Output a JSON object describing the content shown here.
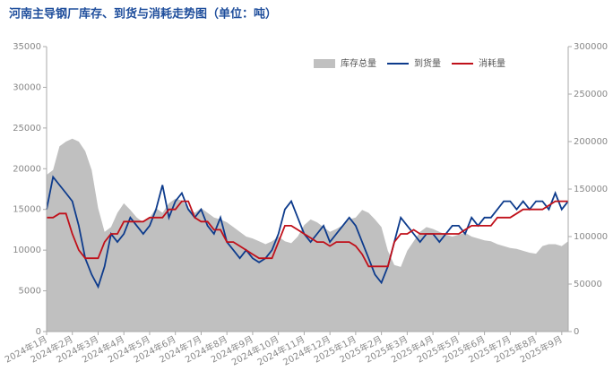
{
  "chart_data": {
    "type": "line",
    "title": "河南主导钢厂库存、到货与消耗走势图（单位：吨）",
    "categories": [
      "2024年1月",
      null,
      null,
      null,
      "2024年2月",
      null,
      null,
      null,
      "2024年3月",
      null,
      null,
      null,
      "2024年4月",
      null,
      null,
      null,
      "2024年5月",
      null,
      null,
      null,
      "2024年6月",
      null,
      null,
      null,
      "2024年7月",
      null,
      null,
      null,
      "2024年8月",
      null,
      null,
      null,
      "2024年9月",
      null,
      null,
      null,
      "2024年10月",
      null,
      null,
      null,
      "2024年11月",
      null,
      null,
      null,
      "2024年12月",
      null,
      null,
      null,
      "2025年1月",
      null,
      null,
      null,
      "2025年2月",
      null,
      null,
      null,
      "2025年3月",
      null,
      null,
      null,
      "2025年4月",
      null,
      null,
      null,
      "2025年5月",
      null,
      null,
      null,
      "2025年6月",
      null,
      null,
      null,
      "2025年7月",
      null,
      null,
      null,
      "2025年8月",
      null,
      null,
      null,
      "2025年9月",
      null
    ],
    "series": [
      {
        "name": "库存总量",
        "kind": "area",
        "axis": "y2",
        "color": "#c0c0c0",
        "values": [
          165000,
          170000,
          195000,
          200000,
          203000,
          200000,
          190000,
          170000,
          130000,
          105000,
          110000,
          125000,
          135000,
          128000,
          120000,
          115000,
          120000,
          130000,
          125000,
          135000,
          140000,
          138000,
          130000,
          125000,
          130000,
          125000,
          120000,
          118000,
          115000,
          110000,
          105000,
          100000,
          98000,
          95000,
          92000,
          95000,
          100000,
          95000,
          93000,
          100000,
          112000,
          118000,
          115000,
          110000,
          105000,
          108000,
          112000,
          118000,
          120000,
          128000,
          125000,
          118000,
          110000,
          85000,
          70000,
          68000,
          85000,
          95000,
          105000,
          110000,
          108000,
          105000,
          102000,
          100000,
          102000,
          104000,
          100000,
          98000,
          96000,
          95000,
          92000,
          90000,
          88000,
          87000,
          85000,
          83000,
          82000,
          90000,
          92000,
          92000,
          90000,
          95000
        ]
      },
      {
        "name": "到货量",
        "kind": "line",
        "color": "#0d3b8c",
        "values": [
          15000,
          19000,
          18000,
          17000,
          16000,
          13000,
          9000,
          7000,
          5500,
          8000,
          12000,
          11000,
          12000,
          14000,
          13000,
          12000,
          13000,
          15000,
          18000,
          14000,
          16000,
          17000,
          15000,
          14000,
          15000,
          13000,
          12000,
          14000,
          11000,
          10000,
          9000,
          10000,
          9000,
          8500,
          9000,
          10000,
          12000,
          15000,
          16000,
          14000,
          12000,
          11000,
          12000,
          13000,
          11000,
          12000,
          13000,
          14000,
          13000,
          11000,
          9000,
          7000,
          6000,
          8000,
          11000,
          14000,
          13000,
          12000,
          11000,
          12000,
          12000,
          11000,
          12000,
          13000,
          13000,
          12000,
          14000,
          13000,
          14000,
          14000,
          15000,
          16000,
          16000,
          15000,
          16000,
          15000,
          16000,
          16000,
          15000,
          17000,
          15000,
          16000
        ]
      },
      {
        "name": "消耗量",
        "kind": "line",
        "color": "#c0101a",
        "values": [
          14000,
          14000,
          14500,
          14500,
          12000,
          10000,
          9000,
          9000,
          9000,
          11000,
          12000,
          12000,
          13500,
          13500,
          13500,
          13500,
          14000,
          14000,
          14000,
          15000,
          15000,
          16000,
          16000,
          14000,
          13500,
          13500,
          12500,
          12500,
          11000,
          11000,
          10500,
          10000,
          9500,
          9000,
          9000,
          9000,
          11000,
          13000,
          13000,
          12500,
          12000,
          11500,
          11000,
          11000,
          10500,
          11000,
          11000,
          11000,
          10500,
          9500,
          8000,
          8000,
          8000,
          8000,
          11000,
          12000,
          12000,
          12500,
          12000,
          12000,
          12000,
          12000,
          12000,
          12000,
          12000,
          12500,
          13000,
          13000,
          13000,
          13000,
          14000,
          14000,
          14000,
          14500,
          15000,
          15000,
          15000,
          15000,
          15500,
          16000,
          16000,
          16000
        ]
      }
    ],
    "ylim": [
      0,
      35000
    ],
    "yticks": [
      0,
      5000,
      10000,
      15000,
      20000,
      25000,
      30000,
      35000
    ],
    "y2lim": [
      0,
      300000
    ],
    "y2ticks": [
      0,
      50000,
      100000,
      150000,
      200000,
      250000,
      300000
    ],
    "legend": "top-right",
    "grid": false
  }
}
